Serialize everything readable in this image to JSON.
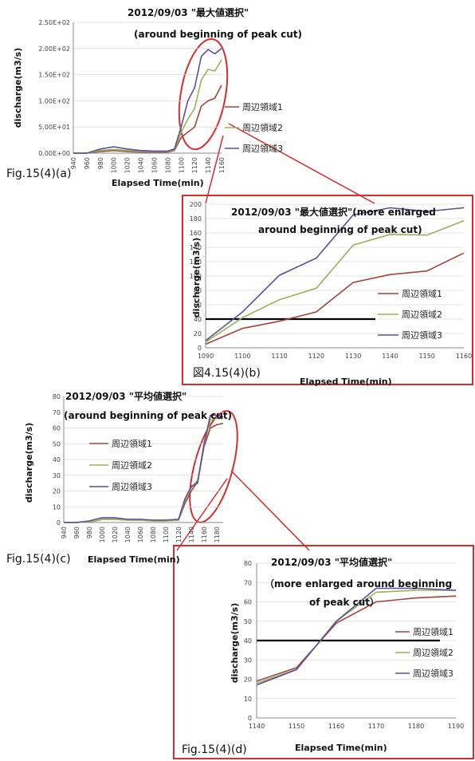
{
  "colors": {
    "s1": "#a0443f",
    "s2": "#94b556",
    "s3": "#5a4f9a",
    "highlight": "#d32f2f",
    "threshold": "#000000"
  },
  "chart_data": [
    {
      "id": "a",
      "type": "line",
      "caption": "Fig.15(4)(a)",
      "title": "2012/09/03 \"最大値選択\"",
      "subtitle": "(around beginning of peak cut)",
      "xlabel": "Elapsed Time(min)",
      "ylabel": "discharge(m3/s)",
      "xlim": [
        940,
        1160
      ],
      "ylim": [
        0,
        250
      ],
      "xticks": [
        940,
        960,
        980,
        1000,
        1020,
        1040,
        1060,
        1080,
        1100,
        1120,
        1140,
        1160
      ],
      "yticks": [
        0,
        50,
        100,
        150,
        200,
        250
      ],
      "ytick_labels": [
        "0.00E+00",
        "5.00E+01",
        "1.00E+02",
        "1.50E+02",
        "2.00E+02",
        "2.50E+02"
      ],
      "legend_position": "right",
      "series": [
        {
          "name": "周辺領域1",
          "x": [
            940,
            960,
            980,
            1000,
            1020,
            1040,
            1060,
            1080,
            1090,
            1100,
            1110,
            1120,
            1130,
            1140,
            1150,
            1160
          ],
          "y": [
            0,
            0,
            3,
            5,
            3,
            2,
            2,
            2,
            5,
            30,
            40,
            50,
            90,
            100,
            105,
            130
          ]
        },
        {
          "name": "周辺領域2",
          "x": [
            940,
            960,
            980,
            1000,
            1020,
            1040,
            1060,
            1080,
            1090,
            1100,
            1110,
            1120,
            1130,
            1140,
            1150,
            1160
          ],
          "y": [
            0,
            0,
            5,
            7,
            5,
            3,
            3,
            3,
            6,
            40,
            65,
            85,
            140,
            160,
            157,
            178
          ]
        },
        {
          "name": "周辺領域3",
          "x": [
            940,
            960,
            980,
            1000,
            1020,
            1040,
            1060,
            1080,
            1090,
            1100,
            1110,
            1120,
            1130,
            1140,
            1150,
            1160
          ],
          "y": [
            0,
            0,
            8,
            12,
            8,
            5,
            4,
            4,
            8,
            50,
            100,
            125,
            185,
            198,
            190,
            200
          ]
        }
      ]
    },
    {
      "id": "b",
      "type": "line",
      "caption": "図4.15(4)(b)",
      "title": "2012/09/03 \"最大値選択\"(more enlarged",
      "subtitle": "around beginning of peak cut)",
      "xlabel": "Elapsed Time(min)",
      "ylabel": "discharge(m3/s)",
      "xlim": [
        1090,
        1160
      ],
      "ylim": [
        0,
        200
      ],
      "xticks": [
        1090,
        1100,
        1110,
        1120,
        1130,
        1140,
        1150,
        1160
      ],
      "yticks": [
        0,
        20,
        40,
        60,
        80,
        100,
        120,
        140,
        160,
        180,
        200
      ],
      "threshold": {
        "y": 40,
        "x": [
          1090,
          1136
        ]
      },
      "legend_position": "right",
      "series": [
        {
          "name": "周辺領域1",
          "x": [
            1090,
            1100,
            1110,
            1120,
            1130,
            1140,
            1150,
            1160
          ],
          "y": [
            5,
            27,
            37,
            50,
            91,
            102,
            107,
            132
          ]
        },
        {
          "name": "周辺領域2",
          "x": [
            1090,
            1100,
            1110,
            1120,
            1130,
            1140,
            1150,
            1160
          ],
          "y": [
            8,
            42,
            67,
            83,
            143,
            158,
            157,
            177
          ]
        },
        {
          "name": "周辺領域3",
          "x": [
            1090,
            1100,
            1110,
            1120,
            1130,
            1140,
            1150,
            1160
          ],
          "y": [
            10,
            50,
            101,
            125,
            185,
            195,
            190,
            195
          ]
        }
      ]
    },
    {
      "id": "c",
      "type": "line",
      "caption": "Fig.15(4)(c)",
      "title": "2012/09/03 \"平均値選択\"",
      "subtitle": "(around beginning of peak cut)",
      "xlabel": "Elapsed Time(min)",
      "ylabel": "discharge(m3/s)",
      "xlim": [
        940,
        1190
      ],
      "ylim": [
        0,
        80
      ],
      "xticks": [
        940,
        960,
        980,
        1000,
        1020,
        1040,
        1060,
        1080,
        1100,
        1120,
        1140,
        1160,
        1180
      ],
      "yticks": [
        0,
        10,
        20,
        30,
        40,
        50,
        60,
        70,
        80
      ],
      "legend_position": "left",
      "series": [
        {
          "name": "周辺領域1",
          "x": [
            940,
            960,
            980,
            990,
            1000,
            1020,
            1040,
            1060,
            1080,
            1100,
            1120,
            1130,
            1140,
            1150,
            1160,
            1170,
            1180,
            1190
          ],
          "y": [
            0,
            0,
            0.5,
            1,
            2,
            2,
            1.5,
            1.5,
            1,
            1,
            1.5,
            12,
            20,
            26,
            48,
            60,
            62,
            63
          ]
        },
        {
          "name": "周辺領域2",
          "x": [
            940,
            960,
            980,
            990,
            1000,
            1020,
            1040,
            1060,
            1080,
            1100,
            1120,
            1130,
            1140,
            1150,
            1160,
            1170,
            1180,
            1190
          ],
          "y": [
            0,
            0,
            0.5,
            1,
            2,
            2,
            1.5,
            1.5,
            1,
            1,
            1.5,
            14,
            22,
            27,
            49,
            65,
            66,
            66
          ]
        },
        {
          "name": "周辺領域3",
          "x": [
            940,
            960,
            980,
            990,
            1000,
            1020,
            1040,
            1060,
            1080,
            1100,
            1120,
            1130,
            1140,
            1150,
            1160,
            1170,
            1180,
            1190
          ],
          "y": [
            0,
            0,
            1,
            2,
            3,
            3,
            2,
            2,
            1.5,
            1.5,
            2,
            15,
            23,
            25,
            50,
            68,
            68,
            67
          ]
        }
      ]
    },
    {
      "id": "d",
      "type": "line",
      "caption": "Fig.15(4)(d)",
      "title": "2012/09/03 \"平均値選択\"",
      "subtitle": "（more enlarged around beginning",
      "subtitle2": "of peak cut）",
      "xlabel": "Elapsed Time(min)",
      "ylabel": "discharge(m3/s)",
      "xlim": [
        1140,
        1190
      ],
      "ylim": [
        0,
        80
      ],
      "xticks": [
        1140,
        1150,
        1160,
        1170,
        1180,
        1190
      ],
      "yticks": [
        0,
        10,
        20,
        30,
        40,
        50,
        60,
        70,
        80
      ],
      "threshold": {
        "y": 40,
        "x": [
          1140,
          1186
        ]
      },
      "legend_position": "right",
      "series": [
        {
          "name": "周辺領域1",
          "x": [
            1140,
            1150,
            1160,
            1170,
            1180,
            1190
          ],
          "y": [
            19,
            26,
            49,
            60,
            62,
            63
          ]
        },
        {
          "name": "周辺領域2",
          "x": [
            1140,
            1150,
            1160,
            1170,
            1180,
            1190
          ],
          "y": [
            18,
            25,
            50,
            65,
            66,
            66
          ]
        },
        {
          "name": "周辺領域3",
          "x": [
            1140,
            1150,
            1160,
            1170,
            1180,
            1190
          ],
          "y": [
            17,
            25,
            50,
            67,
            67,
            66
          ]
        }
      ]
    }
  ]
}
